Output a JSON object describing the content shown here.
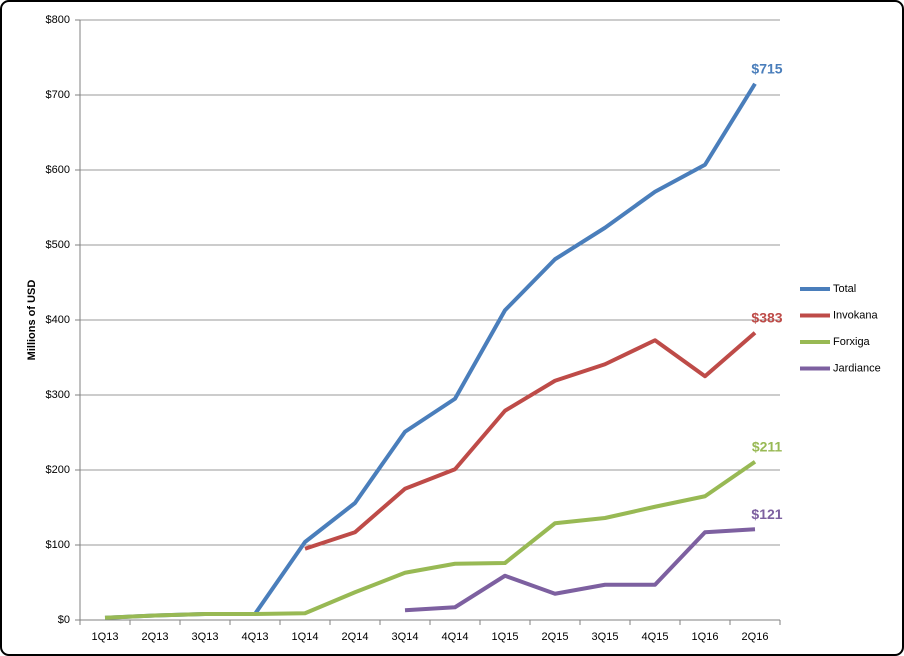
{
  "chart_data": {
    "type": "line",
    "y_label": "Millions  of USD",
    "categories": [
      "1Q13",
      "2Q13",
      "3Q13",
      "4Q13",
      "1Q14",
      "2Q14",
      "3Q14",
      "4Q14",
      "1Q15",
      "2Q15",
      "3Q15",
      "4Q15",
      "1Q16",
      "2Q16"
    ],
    "series": [
      {
        "name": "Total",
        "color": "#4a7ebb",
        "values": [
          3,
          6,
          8,
          8,
          104,
          156,
          251,
          295,
          413,
          481,
          523,
          571,
          607,
          715
        ],
        "value_labels": [
          null,
          null,
          null,
          null,
          null,
          null,
          null,
          null,
          null,
          null,
          null,
          null,
          null,
          "$715"
        ]
      },
      {
        "name": "Invokana",
        "color": "#be4b48",
        "values": [
          null,
          null,
          null,
          null,
          95,
          117,
          175,
          201,
          279,
          319,
          341,
          373,
          325,
          383
        ],
        "value_labels": [
          null,
          null,
          null,
          null,
          null,
          null,
          null,
          null,
          null,
          null,
          null,
          null,
          null,
          "$383"
        ]
      },
      {
        "name": "Forxiga",
        "color": "#98b954",
        "values": [
          3,
          6,
          8,
          8,
          9,
          37,
          63,
          75,
          76,
          129,
          136,
          151,
          165,
          211
        ],
        "value_labels": [
          null,
          null,
          null,
          null,
          null,
          null,
          null,
          null,
          null,
          null,
          null,
          null,
          null,
          "$211"
        ]
      },
      {
        "name": "Jardiance",
        "color": "#7d60a0",
        "values": [
          null,
          null,
          null,
          null,
          null,
          null,
          13,
          17,
          59,
          35,
          47,
          47,
          117,
          121
        ],
        "value_labels": [
          null,
          null,
          null,
          null,
          null,
          null,
          null,
          null,
          null,
          null,
          null,
          null,
          null,
          "$121"
        ]
      }
    ],
    "ylim": [
      0,
      800
    ],
    "yticks": [
      {
        "value": 0,
        "label": "$0"
      },
      {
        "value": 100,
        "label": "$100"
      },
      {
        "value": 200,
        "label": "$200"
      },
      {
        "value": 300,
        "label": "$300"
      },
      {
        "value": 400,
        "label": "$400"
      },
      {
        "value": 500,
        "label": "$500"
      },
      {
        "value": 600,
        "label": "$600"
      },
      {
        "value": 700,
        "label": "$700"
      },
      {
        "value": 800,
        "label": "$800"
      }
    ],
    "grid": true,
    "legend": "right"
  }
}
